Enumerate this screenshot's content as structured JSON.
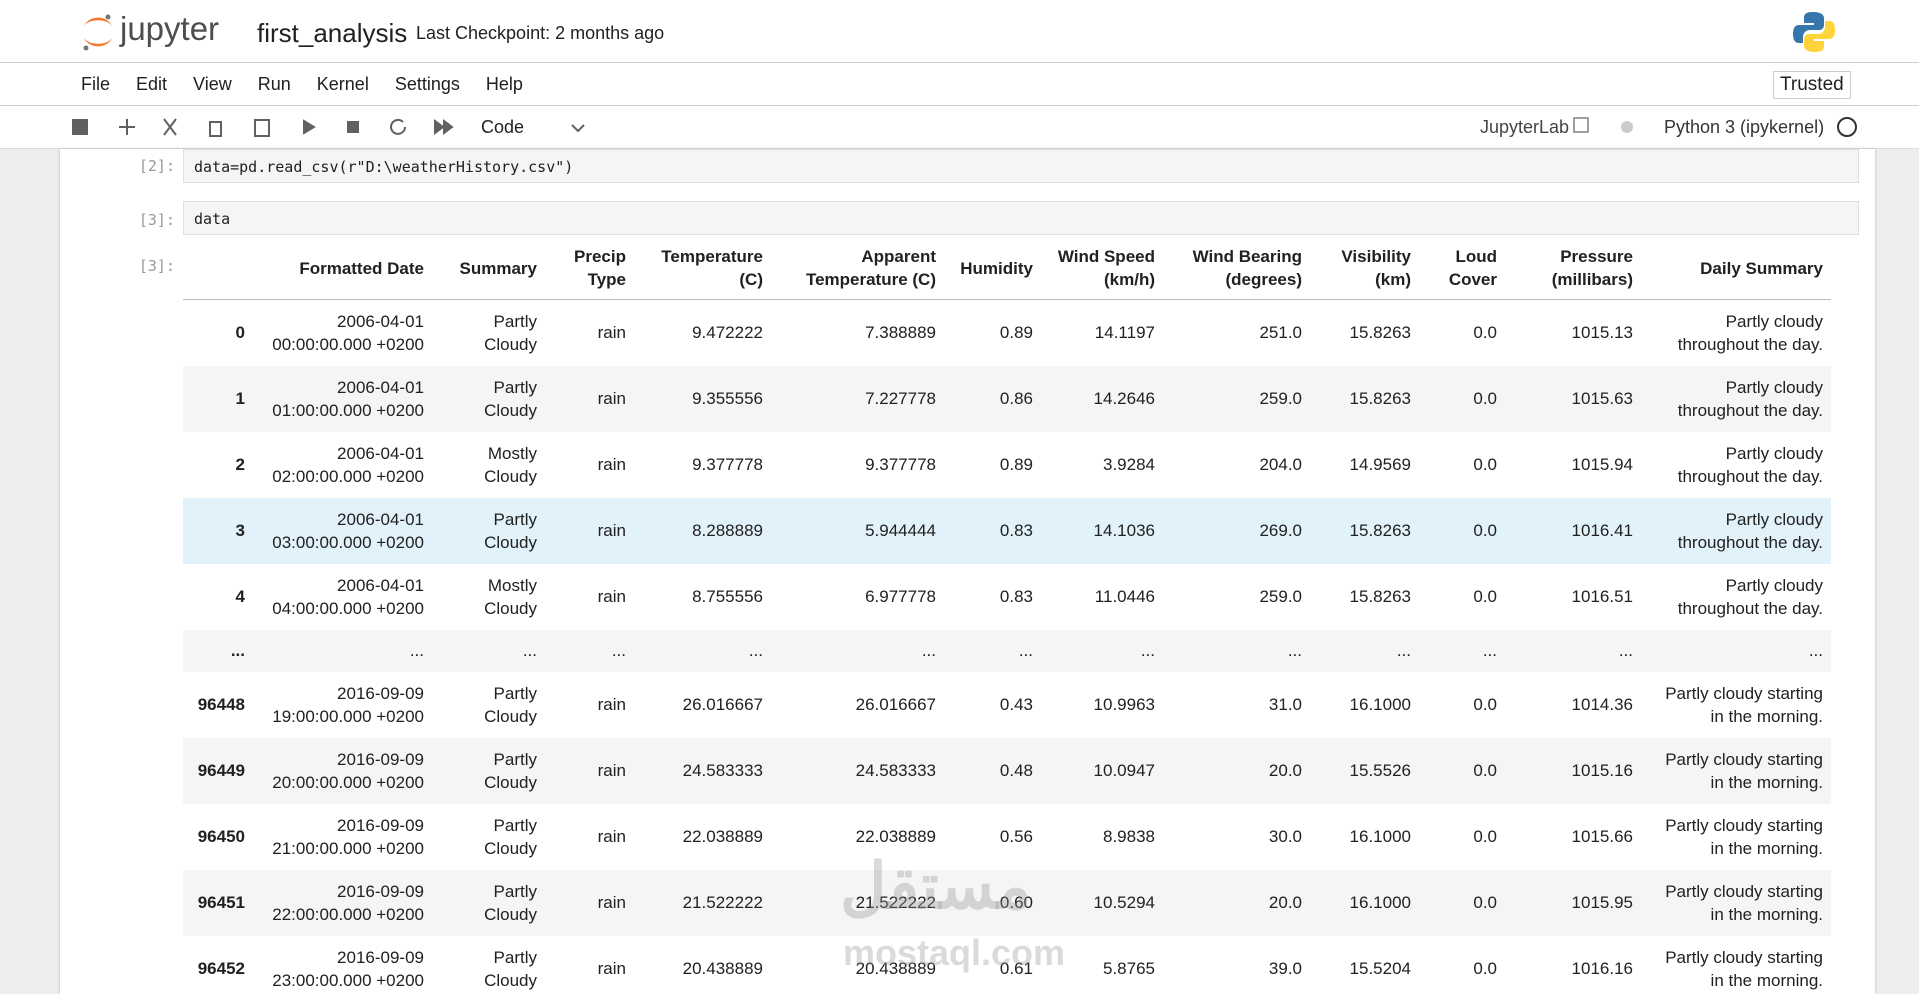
{
  "header": {
    "logo": "jupyter",
    "notebook_name": "first_analysis",
    "checkpoint": "Last Checkpoint: 2 months ago"
  },
  "menu": [
    "File",
    "Edit",
    "View",
    "Run",
    "Kernel",
    "Settings",
    "Help"
  ],
  "trusted": "Trusted",
  "toolbar": {
    "cell_type": "Code",
    "jupyterlab": "JupyterLab",
    "kernel": "Python 3 (ipykernel)"
  },
  "cells": [
    {
      "prompt": "[2]:",
      "code": "data=pd.read_csv(r\"D:\\weatherHistory.csv\")"
    },
    {
      "prompt": "[3]:",
      "code": "data"
    }
  ],
  "output_prompt": "[3]:",
  "table": {
    "columns": [
      "",
      "Formatted Date",
      "Summary",
      "Precip Type",
      "Temperature (C)",
      "Apparent Temperature (C)",
      "Humidity",
      "Wind Speed (km/h)",
      "Wind Bearing (degrees)",
      "Visibility (km)",
      "Loud Cover",
      "Pressure (millibars)",
      "Daily Summary"
    ],
    "rows": [
      [
        "0",
        "2006-04-01 00:00:00.000 +0200",
        "Partly Cloudy",
        "rain",
        "9.472222",
        "7.388889",
        "0.89",
        "14.1197",
        "251.0",
        "15.8263",
        "0.0",
        "1015.13",
        "Partly cloudy throughout the day."
      ],
      [
        "1",
        "2006-04-01 01:00:00.000 +0200",
        "Partly Cloudy",
        "rain",
        "9.355556",
        "7.227778",
        "0.86",
        "14.2646",
        "259.0",
        "15.8263",
        "0.0",
        "1015.63",
        "Partly cloudy throughout the day."
      ],
      [
        "2",
        "2006-04-01 02:00:00.000 +0200",
        "Mostly Cloudy",
        "rain",
        "9.377778",
        "9.377778",
        "0.89",
        "3.9284",
        "204.0",
        "14.9569",
        "0.0",
        "1015.94",
        "Partly cloudy throughout the day."
      ],
      [
        "3",
        "2006-04-01 03:00:00.000 +0200",
        "Partly Cloudy",
        "rain",
        "8.288889",
        "5.944444",
        "0.83",
        "14.1036",
        "269.0",
        "15.8263",
        "0.0",
        "1016.41",
        "Partly cloudy throughout the day."
      ],
      [
        "4",
        "2006-04-01 04:00:00.000 +0200",
        "Mostly Cloudy",
        "rain",
        "8.755556",
        "6.977778",
        "0.83",
        "11.0446",
        "259.0",
        "15.8263",
        "0.0",
        "1016.51",
        "Partly cloudy throughout the day."
      ],
      [
        "...",
        "...",
        "...",
        "...",
        "...",
        "...",
        "...",
        "...",
        "...",
        "...",
        "...",
        "...",
        "..."
      ],
      [
        "96448",
        "2016-09-09 19:00:00.000 +0200",
        "Partly Cloudy",
        "rain",
        "26.016667",
        "26.016667",
        "0.43",
        "10.9963",
        "31.0",
        "16.1000",
        "0.0",
        "1014.36",
        "Partly cloudy starting in the morning."
      ],
      [
        "96449",
        "2016-09-09 20:00:00.000 +0200",
        "Partly Cloudy",
        "rain",
        "24.583333",
        "24.583333",
        "0.48",
        "10.0947",
        "20.0",
        "15.5526",
        "0.0",
        "1015.16",
        "Partly cloudy starting in the morning."
      ],
      [
        "96450",
        "2016-09-09 21:00:00.000 +0200",
        "Partly Cloudy",
        "rain",
        "22.038889",
        "22.038889",
        "0.56",
        "8.9838",
        "30.0",
        "16.1000",
        "0.0",
        "1015.66",
        "Partly cloudy starting in the morning."
      ],
      [
        "96451",
        "2016-09-09 22:00:00.000 +0200",
        "Partly Cloudy",
        "rain",
        "21.522222",
        "21.522222",
        "0.60",
        "10.5294",
        "20.0",
        "16.1000",
        "0.0",
        "1015.95",
        "Partly cloudy starting in the morning."
      ],
      [
        "96452",
        "2016-09-09 23:00:00.000 +0200",
        "Partly Cloudy",
        "rain",
        "20.438889",
        "20.438889",
        "0.61",
        "5.8765",
        "39.0",
        "15.5204",
        "0.0",
        "1016.16",
        "Partly cloudy starting in the morning."
      ]
    ]
  },
  "watermark": {
    "arabic": "مستقل",
    "latin": "mostaql.com"
  }
}
